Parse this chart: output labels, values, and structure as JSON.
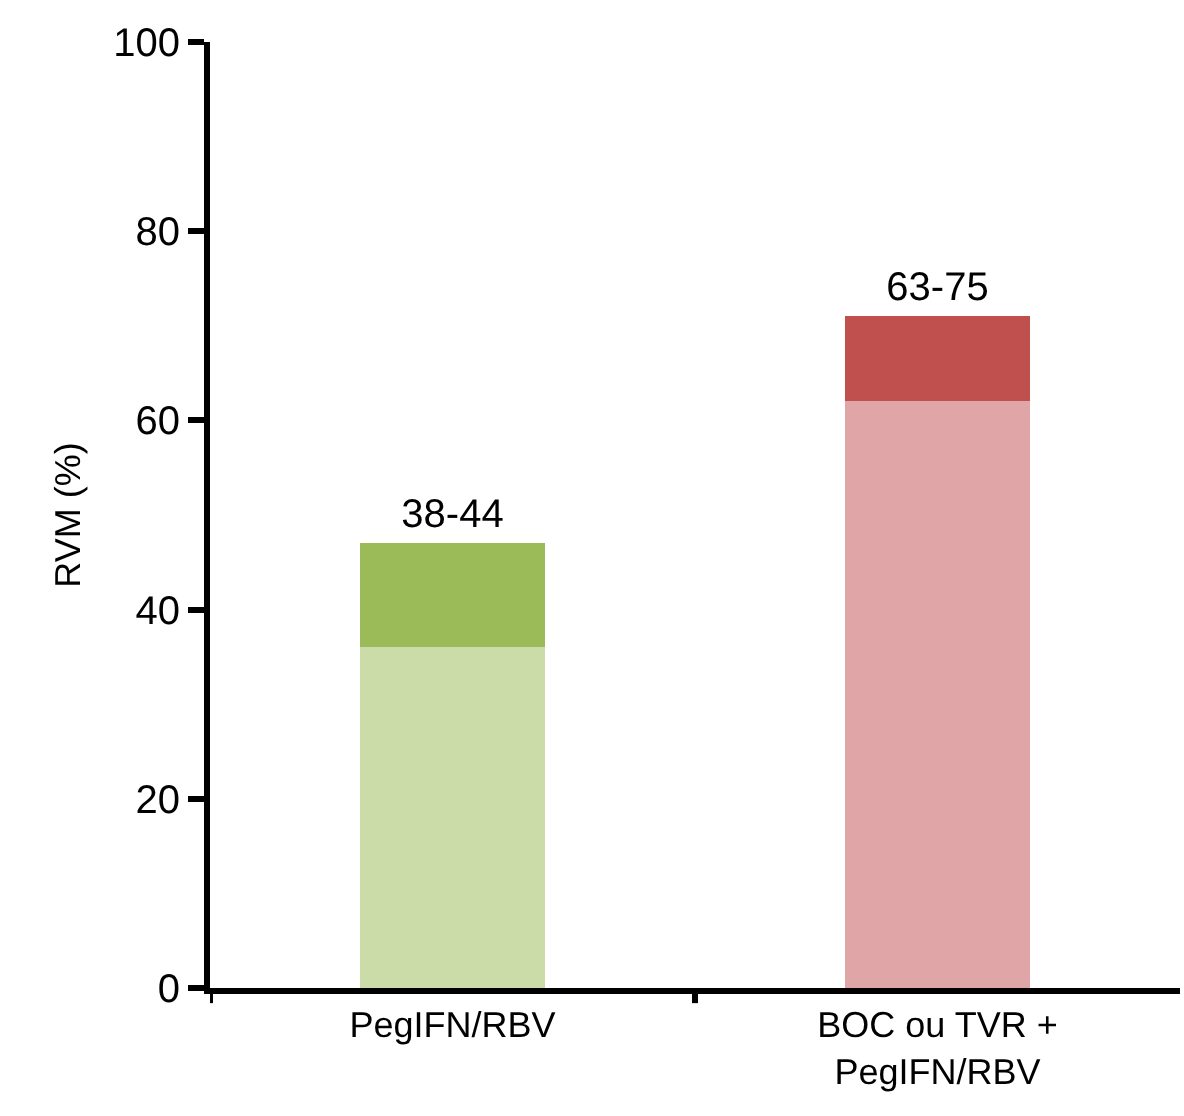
{
  "chart_data": {
    "type": "bar",
    "stacked": true,
    "ylabel": "RVM (%)",
    "categories": [
      "PegIFN/RBV",
      "BOC ou TVR +\nPegIFN/RBV"
    ],
    "series": [
      {
        "colors": [
          "#cbdca9",
          "#e0a5a6"
        ],
        "values": [
          36,
          62
        ]
      },
      {
        "colors": [
          "#9bbb59",
          "#c0504d"
        ],
        "values": [
          11,
          9
        ],
        "value_labels": [
          "38-44",
          "63-75"
        ]
      }
    ],
    "ylim": [
      0,
      100
    ],
    "yticks": [
      0,
      20,
      40,
      60,
      80,
      100
    ],
    "grid": false
  }
}
